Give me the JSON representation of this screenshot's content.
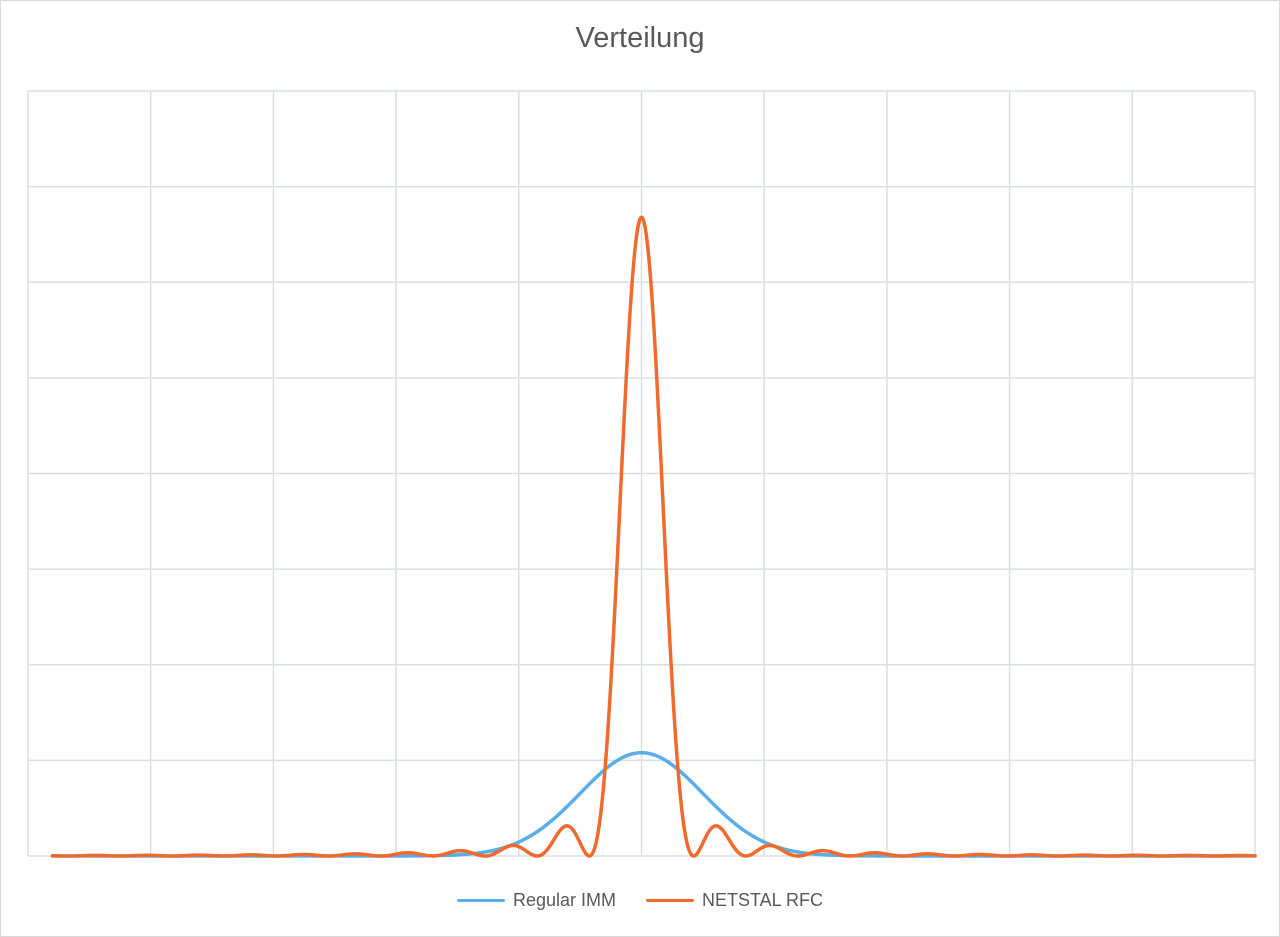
{
  "chart_data": {
    "type": "line",
    "title": "Verteilung",
    "xlabel": "",
    "ylabel": "",
    "xlim": [
      -1,
      1
    ],
    "ylim": [
      0,
      1
    ],
    "grid": true,
    "legend_position": "bottom",
    "x_gridlines": 10,
    "y_gridlines": 8,
    "series": [
      {
        "name": "Regular IMM",
        "color": "#5aaee8",
        "distribution": "normal",
        "mean": 0,
        "sigma": 0.1,
        "peak": 0.135
      },
      {
        "name": "NETSTAL RFC",
        "color": "#f06a2e",
        "distribution": "sinc2",
        "mean": 0,
        "first_zero": 0.085,
        "peak": 0.835
      }
    ]
  }
}
